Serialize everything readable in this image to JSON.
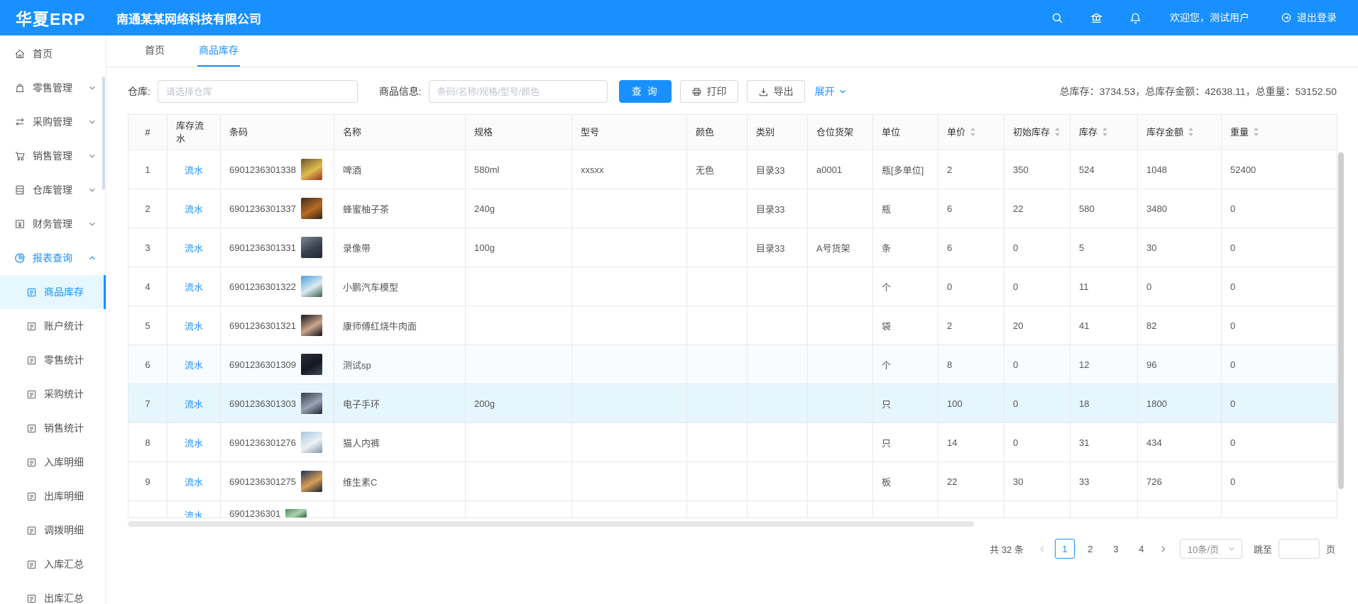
{
  "header": {
    "logo": "华夏ERP",
    "company": "南通某某网络科技有限公司",
    "welcome": "欢迎您，测试用户",
    "logout_label": "退出登录"
  },
  "tabs": [
    {
      "label": "首页"
    },
    {
      "label": "商品库存"
    }
  ],
  "sidebar": {
    "items": [
      {
        "label": "首页",
        "icon": "home"
      },
      {
        "label": "零售管理",
        "icon": "retail",
        "chevron": "down"
      },
      {
        "label": "采购管理",
        "icon": "purchase",
        "chevron": "down"
      },
      {
        "label": "销售管理",
        "icon": "sales",
        "chevron": "down"
      },
      {
        "label": "仓库管理",
        "icon": "warehouse",
        "chevron": "down"
      },
      {
        "label": "财务管理",
        "icon": "finance",
        "chevron": "down"
      },
      {
        "label": "报表查询",
        "icon": "report",
        "chevron": "up",
        "active": true
      },
      {
        "label": "商品库存",
        "icon": "doc",
        "sub": true,
        "active": true,
        "selected": true
      },
      {
        "label": "账户统计",
        "icon": "doc",
        "sub": true
      },
      {
        "label": "零售统计",
        "icon": "doc",
        "sub": true
      },
      {
        "label": "采购统计",
        "icon": "doc",
        "sub": true
      },
      {
        "label": "销售统计",
        "icon": "doc",
        "sub": true
      },
      {
        "label": "入库明细",
        "icon": "doc",
        "sub": true
      },
      {
        "label": "出库明细",
        "icon": "doc",
        "sub": true
      },
      {
        "label": "调拨明细",
        "icon": "doc",
        "sub": true
      },
      {
        "label": "入库汇总",
        "icon": "doc",
        "sub": true
      },
      {
        "label": "出库汇总",
        "icon": "doc",
        "sub": true
      }
    ]
  },
  "filters": {
    "warehouse_label": "仓库:",
    "warehouse_placeholder": "请选择仓库",
    "product_label": "商品信息:",
    "product_placeholder": "条码/名称/规格/型号/颜色",
    "search_label": "查 询",
    "print_label": "打印",
    "export_label": "导出",
    "expand_label": "展开"
  },
  "stats": {
    "summary": "总库存：3734.53，总库存金额：42638.11，总重量：53152.50"
  },
  "table": {
    "columns": [
      {
        "label": "#",
        "sortable": false
      },
      {
        "label": "库存流水",
        "sortable": false
      },
      {
        "label": "条码",
        "sortable": false
      },
      {
        "label": "名称",
        "sortable": false
      },
      {
        "label": "规格",
        "sortable": false
      },
      {
        "label": "型号",
        "sortable": false
      },
      {
        "label": "颜色",
        "sortable": false
      },
      {
        "label": "类别",
        "sortable": false
      },
      {
        "label": "仓位货架",
        "sortable": false
      },
      {
        "label": "单位",
        "sortable": false
      },
      {
        "label": "单价",
        "sortable": true
      },
      {
        "label": "初始库存",
        "sortable": true
      },
      {
        "label": "库存",
        "sortable": true
      },
      {
        "label": "库存金额",
        "sortable": true
      },
      {
        "label": "重量",
        "sortable": true
      }
    ],
    "flow_link_label": "流水",
    "rows": [
      {
        "index": "1",
        "barcode": "6901236301338",
        "name": "啤酒",
        "spec": "580ml",
        "model": "xxsxx",
        "color": "无色",
        "category": "目录33",
        "shelf": "a0001",
        "unit": "瓶[多单位]",
        "price": "2",
        "initial_stock": "350",
        "stock": "524",
        "amount": "1048",
        "weight": "52400",
        "thumb_colors": [
          "#6b4f2c",
          "#e0bd4e",
          "#9c3424"
        ]
      },
      {
        "index": "2",
        "barcode": "6901236301337",
        "name": "蜂蜜柚子茶",
        "spec": "240g",
        "model": "",
        "color": "",
        "category": "目录33",
        "shelf": "",
        "unit": "瓶",
        "price": "6",
        "initial_stock": "22",
        "stock": "580",
        "amount": "3480",
        "weight": "0",
        "thumb_colors": [
          "#403020",
          "#b96a22",
          "#2e2318"
        ]
      },
      {
        "index": "3",
        "barcode": "6901236301331",
        "name": "录像带",
        "spec": "100g",
        "model": "",
        "color": "",
        "category": "目录33",
        "shelf": "A号货架",
        "unit": "条",
        "price": "6",
        "initial_stock": "0",
        "stock": "5",
        "amount": "30",
        "weight": "0",
        "thumb_colors": [
          "#7d8795",
          "#3a4250",
          "#23262e"
        ]
      },
      {
        "index": "4",
        "barcode": "6901236301322",
        "name": "小鹏汽车模型",
        "spec": "",
        "model": "",
        "color": "",
        "category": "",
        "shelf": "",
        "unit": "个",
        "price": "0",
        "initial_stock": "0",
        "stock": "11",
        "amount": "0",
        "weight": "0",
        "thumb_colors": [
          "#47a0dd",
          "#ddeaf2",
          "#33613f"
        ]
      },
      {
        "index": "5",
        "barcode": "6901236301321",
        "name": "康师傅红烧牛肉面",
        "spec": "",
        "model": "",
        "color": "",
        "category": "",
        "shelf": "",
        "unit": "袋",
        "price": "2",
        "initial_stock": "20",
        "stock": "41",
        "amount": "82",
        "weight": "0",
        "thumb_colors": [
          "#15151b",
          "#caa58b",
          "#101014"
        ]
      },
      {
        "index": "6",
        "barcode": "6901236301309",
        "name": "测试sp",
        "spec": "",
        "model": "",
        "color": "",
        "category": "",
        "shelf": "",
        "unit": "个",
        "price": "8",
        "initial_stock": "0",
        "stock": "12",
        "amount": "96",
        "weight": "0",
        "striped": true,
        "thumb_colors": [
          "#2a2f3a",
          "#151821",
          "#3e4a5c"
        ]
      },
      {
        "index": "7",
        "barcode": "6901236301303",
        "name": "电子手环",
        "spec": "200g",
        "model": "",
        "color": "",
        "category": "",
        "shelf": "",
        "unit": "只",
        "price": "100",
        "initial_stock": "0",
        "stock": "18",
        "amount": "1800",
        "weight": "0",
        "highlighted": true,
        "thumb_colors": [
          "#343c49",
          "#97a4b3",
          "#20252e"
        ]
      },
      {
        "index": "8",
        "barcode": "6901236301276",
        "name": "猫人内裤",
        "spec": "",
        "model": "",
        "color": "",
        "category": "",
        "shelf": "",
        "unit": "只",
        "price": "14",
        "initial_stock": "0",
        "stock": "31",
        "amount": "434",
        "weight": "0",
        "thumb_colors": [
          "#a6c6de",
          "#edf1f4",
          "#8095a8"
        ]
      },
      {
        "index": "9",
        "barcode": "6901236301275",
        "name": "维生素C",
        "spec": "",
        "model": "",
        "color": "",
        "category": "",
        "shelf": "",
        "unit": "板",
        "price": "22",
        "initial_stock": "30",
        "stock": "33",
        "amount": "726",
        "weight": "0",
        "thumb_colors": [
          "#20305c",
          "#d8a055",
          "#141d3a"
        ]
      }
    ],
    "partial_row": {
      "barcode": "6901236301",
      "thumb_colors": [
        "#4d8a58",
        "#a8d4b0",
        "#2f5d3a"
      ]
    }
  },
  "pagination": {
    "total_label": "共 32 条",
    "pages": [
      "1",
      "2",
      "3",
      "4"
    ],
    "current": "1",
    "page_size": "10条/页",
    "jump_label": "跳至",
    "page_suffix": "页"
  },
  "colors": {
    "primary": "#1890ff",
    "selected_menu_bg": "#e6f7ff",
    "hover_row_bg": "#e6f6fd",
    "border": "#e9e9e9"
  }
}
